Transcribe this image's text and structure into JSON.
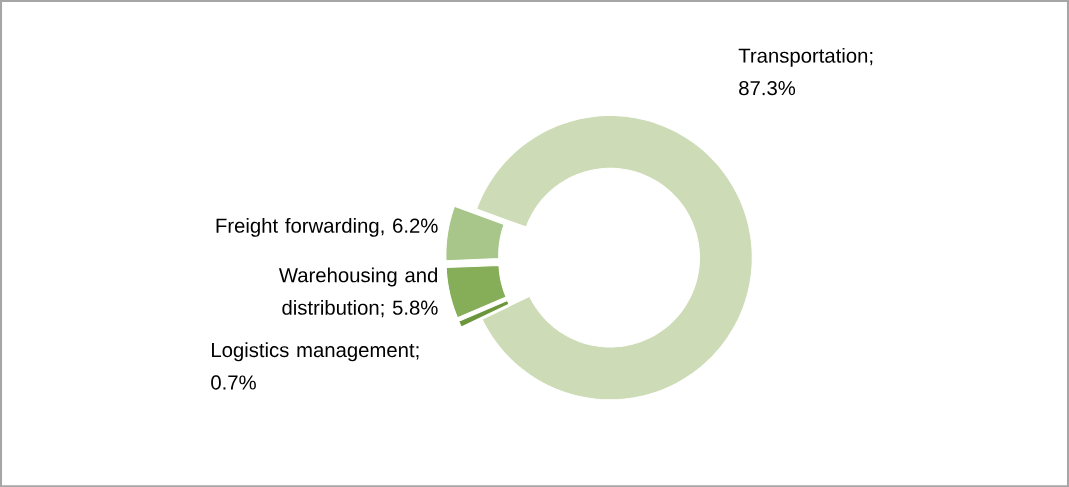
{
  "chart_data": {
    "type": "donut",
    "categories": [
      "Transportation",
      "Freight forwarding",
      "Warehousing and distribution",
      "Logistics management"
    ],
    "values": [
      87.3,
      6.2,
      5.8,
      0.7
    ],
    "value_labels": [
      "; 87.3%",
      ", 6.2%",
      "; 5.8%",
      "; 0.7%"
    ],
    "colors": [
      "#cddcb6",
      "#a9c68a",
      "#86ad58",
      "#6b963c"
    ]
  }
}
